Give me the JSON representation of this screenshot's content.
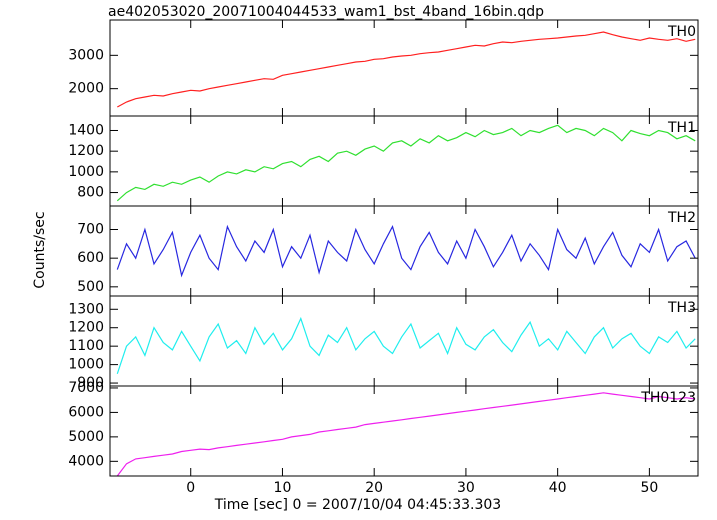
{
  "chart_data": {
    "type": "line",
    "title": "ae402053020_20071004044533_wam1_bst_4band_16bin.qdp",
    "xlabel": "Time [sec] 0 = 2007/10/04 04:45:33.303",
    "ylabel": "Counts/sec",
    "xlim": [
      -8.8,
      55.3
    ],
    "xticks": [
      0,
      10,
      20,
      30,
      40,
      50
    ],
    "x": [
      -8,
      -7,
      -6,
      -5,
      -4,
      -3,
      -2,
      -1,
      0,
      1,
      2,
      3,
      4,
      5,
      6,
      7,
      8,
      9,
      10,
      11,
      12,
      13,
      14,
      15,
      16,
      17,
      18,
      19,
      20,
      21,
      22,
      23,
      24,
      25,
      26,
      27,
      28,
      29,
      30,
      31,
      32,
      33,
      34,
      35,
      36,
      37,
      38,
      39,
      40,
      41,
      42,
      43,
      44,
      45,
      46,
      47,
      48,
      49,
      50,
      51,
      52,
      53,
      54,
      55
    ],
    "panels": [
      {
        "name": "TH0",
        "color": "#ff2020",
        "ylim": [
          1180,
          4060
        ],
        "yticks": [
          2000,
          3000
        ],
        "values": [
          1450,
          1600,
          1700,
          1750,
          1800,
          1780,
          1850,
          1900,
          1950,
          1930,
          2000,
          2050,
          2100,
          2150,
          2200,
          2250,
          2300,
          2280,
          2400,
          2450,
          2500,
          2550,
          2600,
          2650,
          2700,
          2750,
          2800,
          2820,
          2880,
          2900,
          2950,
          2980,
          3000,
          3050,
          3080,
          3100,
          3150,
          3200,
          3250,
          3300,
          3280,
          3350,
          3400,
          3380,
          3420,
          3450,
          3480,
          3500,
          3520,
          3550,
          3580,
          3600,
          3650,
          3700,
          3620,
          3550,
          3500,
          3450,
          3520,
          3480,
          3450,
          3500,
          3420,
          3480
        ]
      },
      {
        "name": "TH1",
        "color": "#30e030",
        "ylim": [
          670,
          1540
        ],
        "yticks": [
          800,
          1000,
          1200,
          1400
        ],
        "values": [
          720,
          800,
          850,
          830,
          880,
          860,
          900,
          880,
          920,
          950,
          900,
          960,
          1000,
          980,
          1020,
          1000,
          1050,
          1030,
          1080,
          1100,
          1050,
          1120,
          1150,
          1100,
          1180,
          1200,
          1160,
          1220,
          1250,
          1200,
          1280,
          1300,
          1250,
          1320,
          1280,
          1350,
          1300,
          1330,
          1380,
          1340,
          1400,
          1360,
          1380,
          1420,
          1350,
          1400,
          1380,
          1420,
          1450,
          1380,
          1420,
          1400,
          1350,
          1420,
          1380,
          1300,
          1400,
          1370,
          1350,
          1400,
          1380,
          1320,
          1350,
          1300
        ]
      },
      {
        "name": "TH2",
        "color": "#2828e0",
        "ylim": [
          468,
          782
        ],
        "yticks": [
          500,
          600,
          700
        ],
        "values": [
          560,
          650,
          600,
          700,
          580,
          630,
          690,
          540,
          620,
          680,
          600,
          560,
          710,
          640,
          590,
          660,
          620,
          700,
          570,
          640,
          600,
          680,
          550,
          660,
          620,
          590,
          700,
          630,
          580,
          650,
          710,
          600,
          560,
          640,
          690,
          620,
          580,
          660,
          600,
          700,
          640,
          570,
          620,
          680,
          590,
          650,
          610,
          560,
          700,
          630,
          600,
          670,
          580,
          640,
          690,
          610,
          570,
          650,
          620,
          700,
          590,
          640,
          660,
          600
        ]
      },
      {
        "name": "TH3",
        "color": "#20eeee",
        "ylim": [
          884,
          1372
        ],
        "yticks": [
          900,
          1000,
          1100,
          1200,
          1300
        ],
        "values": [
          950,
          1100,
          1150,
          1050,
          1200,
          1120,
          1080,
          1180,
          1100,
          1020,
          1150,
          1220,
          1090,
          1130,
          1060,
          1200,
          1110,
          1170,
          1080,
          1140,
          1250,
          1100,
          1050,
          1160,
          1120,
          1200,
          1080,
          1140,
          1180,
          1100,
          1060,
          1150,
          1220,
          1090,
          1130,
          1170,
          1060,
          1200,
          1110,
          1080,
          1150,
          1190,
          1120,
          1070,
          1160,
          1230,
          1100,
          1140,
          1080,
          1180,
          1120,
          1060,
          1150,
          1200,
          1090,
          1140,
          1170,
          1100,
          1060,
          1150,
          1120,
          1180,
          1090,
          1140
        ]
      },
      {
        "name": "TH0123",
        "color": "#ee20ee",
        "ylim": [
          3400,
          7080
        ],
        "yticks": [
          4000,
          5000,
          6000,
          7000
        ],
        "values": [
          3400,
          3900,
          4100,
          4150,
          4200,
          4250,
          4300,
          4400,
          4450,
          4500,
          4480,
          4550,
          4600,
          4650,
          4700,
          4750,
          4800,
          4850,
          4900,
          5000,
          5050,
          5100,
          5200,
          5250,
          5300,
          5350,
          5400,
          5500,
          5550,
          5600,
          5650,
          5700,
          5750,
          5800,
          5850,
          5900,
          5950,
          6000,
          6050,
          6100,
          6150,
          6200,
          6250,
          6300,
          6350,
          6400,
          6450,
          6500,
          6550,
          6600,
          6650,
          6700,
          6750,
          6800,
          6750,
          6700,
          6650,
          6600,
          6550,
          6650,
          6600,
          6550,
          6600,
          6550
        ]
      }
    ]
  }
}
